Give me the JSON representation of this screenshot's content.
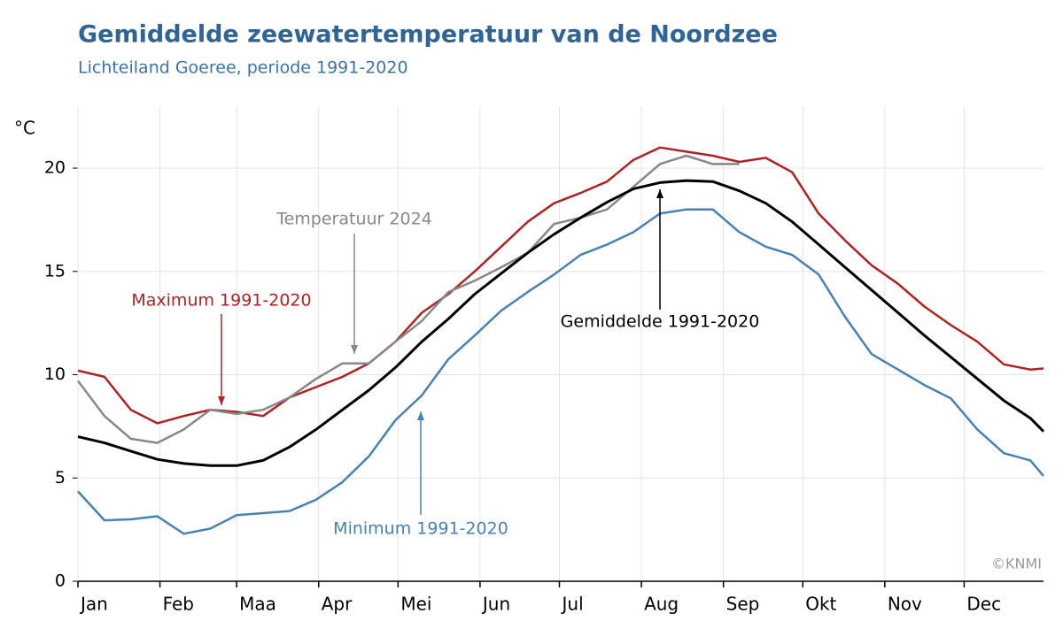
{
  "chart_data": {
    "type": "line",
    "title": "Gemiddelde zeewatertemperatuur van de Noordzee",
    "subtitle": "Lichteiland Goeree, periode 1991-2020",
    "y_label": "°C",
    "credit": "©KNMI",
    "x": [
      1,
      11,
      21,
      31,
      41,
      51,
      61,
      71,
      81,
      91,
      101,
      111,
      121,
      131,
      141,
      151,
      161,
      171,
      181,
      191,
      201,
      211,
      221,
      231,
      241,
      251,
      261,
      271,
      281,
      291,
      301,
      311,
      321,
      331,
      341,
      351,
      361,
      366
    ],
    "series": [
      {
        "name": "Maximum 1991-2020",
        "color": "#b22222",
        "values": [
          10.2,
          9.9,
          8.3,
          7.65,
          8.0,
          8.3,
          8.2,
          8.0,
          8.9,
          9.4,
          9.9,
          10.55,
          11.6,
          13.0,
          13.9,
          15.0,
          16.2,
          17.4,
          18.3,
          18.8,
          19.35,
          20.4,
          21.0,
          20.8,
          20.6,
          20.3,
          20.5,
          19.8,
          17.8,
          16.5,
          15.3,
          14.4,
          13.3,
          12.4,
          11.6,
          10.5,
          10.25,
          10.3
        ]
      },
      {
        "name": "Temperatuur 2024",
        "color": "#888888",
        "values": [
          9.7,
          8.0,
          6.9,
          6.7,
          7.35,
          8.3,
          8.1,
          8.3,
          8.9,
          9.8,
          10.55,
          10.55,
          11.6,
          12.6,
          14.0,
          14.55,
          15.2,
          15.9,
          17.3,
          17.6,
          18.0,
          19.1,
          20.2,
          20.6,
          20.2,
          20.2,
          null,
          null,
          null,
          null,
          null,
          null,
          null,
          null,
          null,
          null,
          null,
          null
        ]
      },
      {
        "name": "Gemiddelde 1991-2020",
        "color": "#000000",
        "values": [
          7.0,
          6.7,
          6.3,
          5.9,
          5.7,
          5.6,
          5.6,
          5.85,
          6.5,
          7.35,
          8.3,
          9.25,
          10.35,
          11.6,
          12.7,
          13.9,
          14.9,
          15.9,
          16.8,
          17.6,
          18.35,
          19.0,
          19.3,
          19.4,
          19.35,
          18.9,
          18.3,
          17.4,
          16.3,
          15.2,
          14.1,
          13.0,
          11.9,
          10.85,
          9.8,
          8.75,
          7.9,
          7.25
        ]
      },
      {
        "name": "Minimum 1991-2020",
        "color": "#4682b4",
        "values": [
          4.35,
          2.95,
          3.0,
          3.15,
          2.3,
          2.55,
          3.2,
          3.3,
          3.4,
          3.95,
          4.8,
          6.05,
          7.8,
          9.0,
          10.75,
          11.9,
          13.1,
          14.0,
          14.85,
          15.8,
          16.3,
          16.9,
          17.8,
          18.0,
          18.0,
          16.9,
          16.2,
          15.8,
          14.85,
          12.8,
          11.0,
          10.25,
          9.5,
          8.85,
          7.35,
          6.2,
          5.85,
          5.1
        ]
      }
    ],
    "xlim": [
      1,
      366
    ],
    "xticks": [
      {
        "value": 1,
        "label": "Jan"
      },
      {
        "value": 32,
        "label": "Feb"
      },
      {
        "value": 61,
        "label": "Maa"
      },
      {
        "value": 92,
        "label": "Apr"
      },
      {
        "value": 122,
        "label": "Mei"
      },
      {
        "value": 153,
        "label": "Jun"
      },
      {
        "value": 183,
        "label": "Jul"
      },
      {
        "value": 214,
        "label": "Aug"
      },
      {
        "value": 245,
        "label": "Sep"
      },
      {
        "value": 275,
        "label": "Okt"
      },
      {
        "value": 306,
        "label": "Nov"
      },
      {
        "value": 336,
        "label": "Dec"
      }
    ],
    "ylim": [
      0,
      23
    ],
    "yticks": [
      0,
      5,
      10,
      15,
      20
    ],
    "grid": true
  }
}
